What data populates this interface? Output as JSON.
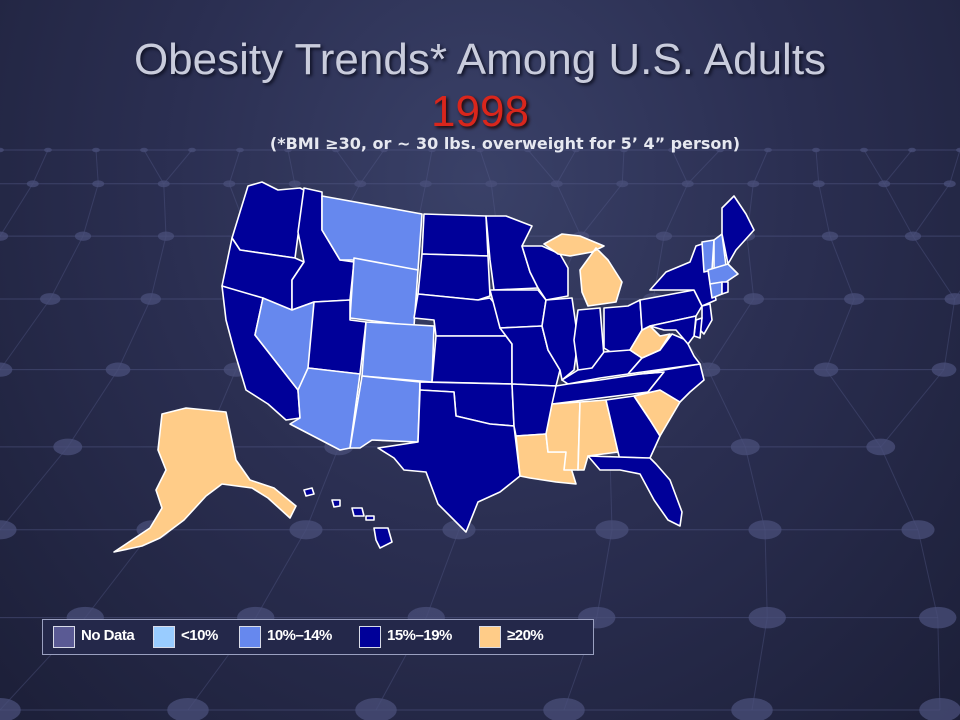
{
  "title": {
    "line1": "Obesity Trends* Among U.S. Adults",
    "year": "1998",
    "subtitle": "(*BMI ≥30, or ~ 30 lbs. overweight for 5’ 4” person)"
  },
  "colors": {
    "no_data": "#5a5a94",
    "lt10": "#99ccff",
    "c10_14": "#6688ee",
    "c15_19": "#000099",
    "ge20": "#ffcc88",
    "state_border": "#ffffff"
  },
  "legend": [
    {
      "label": "No Data",
      "category": "no_data"
    },
    {
      "label": "<10%",
      "category": "lt10"
    },
    {
      "label": "10%–14%",
      "category": "c10_14"
    },
    {
      "label": "15%–19%",
      "category": "c15_19"
    },
    {
      "label": "≥20%",
      "category": "ge20"
    }
  ],
  "states": {
    "WA": "c15_19",
    "OR": "c15_19",
    "CA": "c15_19",
    "ID": "c15_19",
    "NV": "c10_14",
    "MT": "c10_14",
    "WY": "c10_14",
    "UT": "c15_19",
    "AZ": "c10_14",
    "CO": "c10_14",
    "NM": "c10_14",
    "ND": "c15_19",
    "SD": "c15_19",
    "NE": "c15_19",
    "KS": "c15_19",
    "OK": "c15_19",
    "TX": "c15_19",
    "MN": "c15_19",
    "IA": "c15_19",
    "MO": "c15_19",
    "AR": "c15_19",
    "LA": "ge20",
    "WI": "c15_19",
    "IL": "c15_19",
    "MI": "ge20",
    "IN": "c15_19",
    "OH": "c15_19",
    "KY": "c15_19",
    "TN": "c15_19",
    "MS": "ge20",
    "AL": "ge20",
    "GA": "c15_19",
    "FL": "c15_19",
    "SC": "ge20",
    "NC": "c15_19",
    "VA": "c15_19",
    "WV": "ge20",
    "PA": "c15_19",
    "NY": "c15_19",
    "NJ": "c15_19",
    "DE": "c15_19",
    "MD": "c15_19",
    "VT": "c10_14",
    "NH": "c10_14",
    "ME": "c15_19",
    "MA": "c10_14",
    "CT": "c10_14",
    "RI": "c15_19",
    "AK": "ge20",
    "HI": "c15_19"
  }
}
